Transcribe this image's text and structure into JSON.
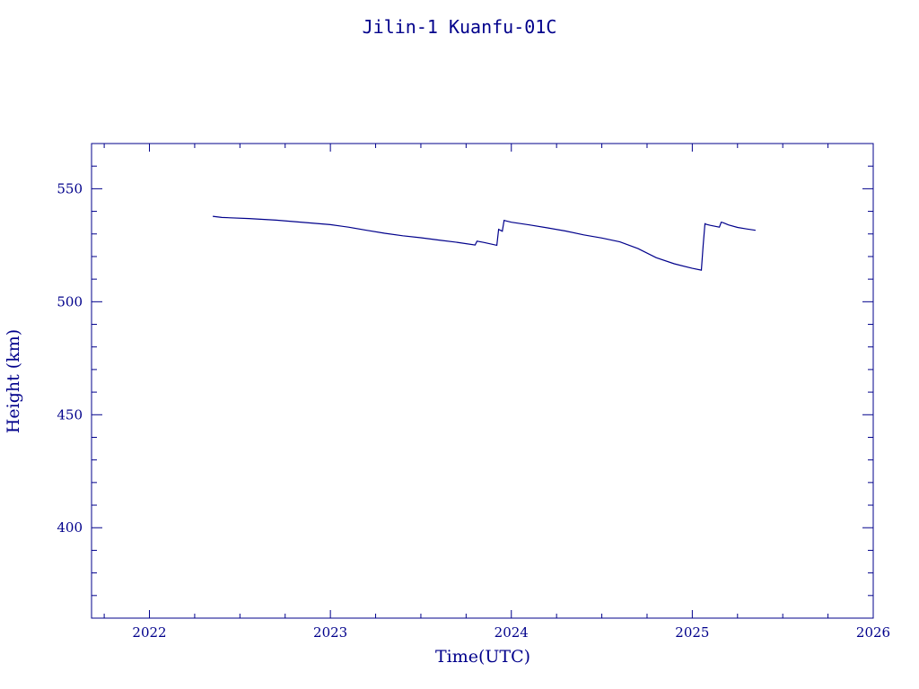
{
  "chart_data": {
    "type": "line",
    "title": "Jilin-1 Kuanfu-01C",
    "xlabel": "Time(UTC)",
    "ylabel": "Height (km)",
    "xlim": [
      2021.68,
      2026.0
    ],
    "ylim": [
      360,
      570
    ],
    "x_ticks": [
      "2022",
      "2023",
      "2024",
      "2025",
      "2026"
    ],
    "y_ticks": [
      "400",
      "450",
      "500",
      "550"
    ],
    "color": "#00008b",
    "grid": false,
    "series": [
      {
        "x": [
          2022.35,
          2022.4,
          2022.55,
          2022.7,
          2022.85,
          2023.0,
          2023.1,
          2023.2,
          2023.3,
          2023.4,
          2023.5,
          2023.6,
          2023.7,
          2023.8,
          2023.81,
          2023.85,
          2023.92,
          2023.93,
          2023.95,
          2023.96,
          2023.97,
          2024.0,
          2024.1,
          2024.2,
          2024.3,
          2024.4,
          2024.5,
          2024.6,
          2024.7,
          2024.8,
          2024.9,
          2025.0,
          2025.05,
          2025.06,
          2025.07,
          2025.08,
          2025.1,
          2025.15,
          2025.16,
          2025.17,
          2025.2,
          2025.25,
          2025.3,
          2025.35
        ],
        "y": [
          537.8,
          537.3,
          536.8,
          536.1,
          535.1,
          534.1,
          533.0,
          531.6,
          530.3,
          529.2,
          528.3,
          527.3,
          526.3,
          525.1,
          526.8,
          526.2,
          525.0,
          532.0,
          531.2,
          536.0,
          535.8,
          535.2,
          534.0,
          532.7,
          531.3,
          529.6,
          528.2,
          526.5,
          523.5,
          519.5,
          516.8,
          514.8,
          514.0,
          525.0,
          534.5,
          534.2,
          533.8,
          533.0,
          535.2,
          535.0,
          534.0,
          532.9,
          532.2,
          531.6
        ]
      }
    ]
  }
}
